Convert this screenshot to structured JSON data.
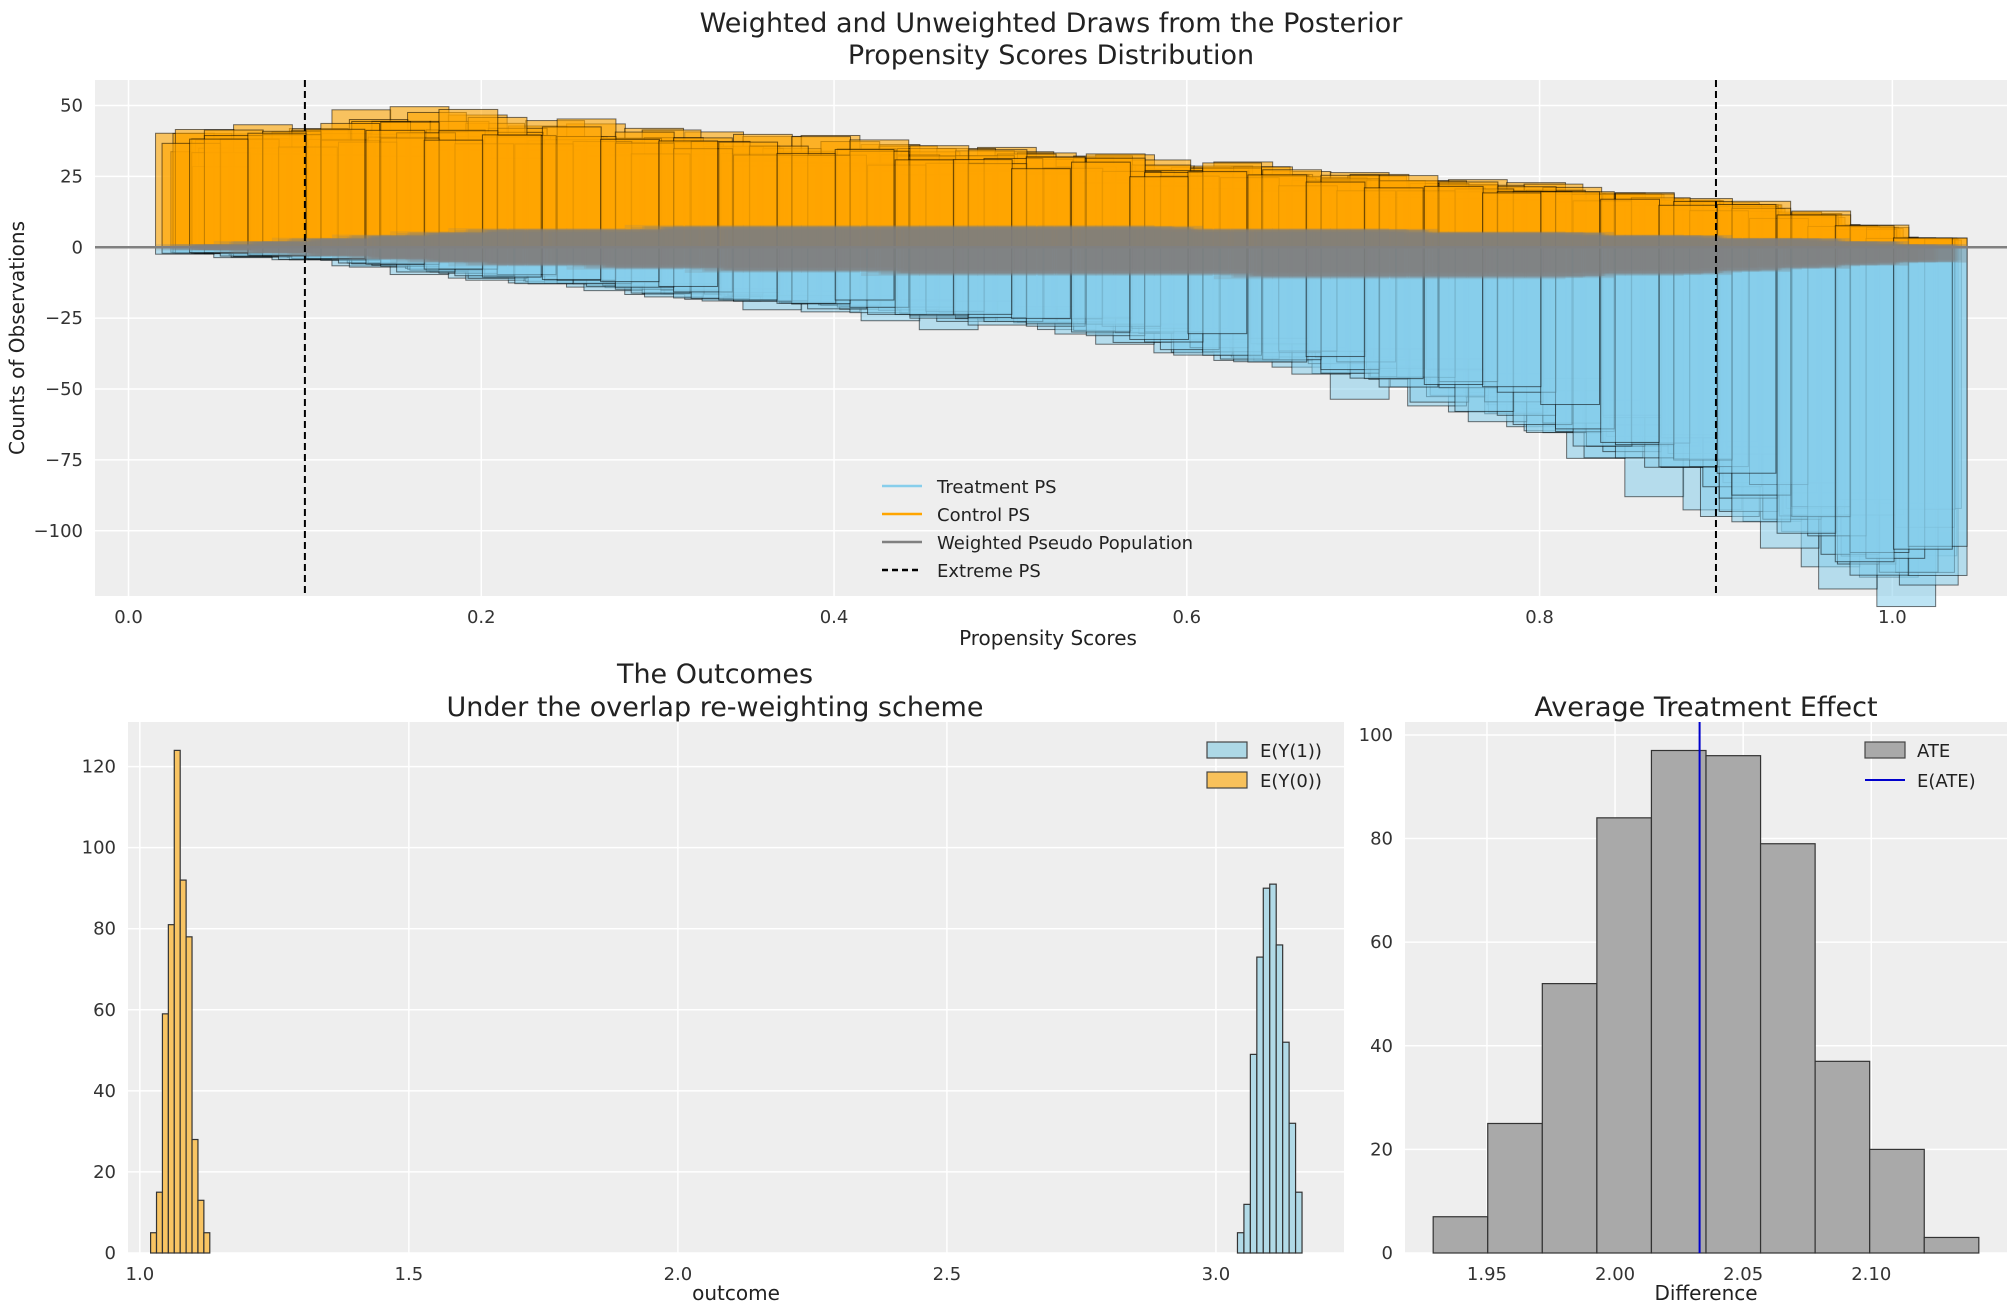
{
  "chart_data": [
    {
      "type": "bar",
      "title": [
        "Weighted and Unweighted Draws from the Posterior",
        "Propensity Scores Distribution"
      ],
      "xlabel": "Propensity Scores",
      "ylabel": "Counts of Observations",
      "xlim": [
        -0.019,
        1.065
      ],
      "ylim": [
        -123,
        59
      ],
      "grid": true,
      "legend_placement": "lower-center",
      "xticks": [
        "0.0",
        "0.2",
        "0.4",
        "0.6",
        "0.8",
        "1.0"
      ],
      "xtick_values": [
        0,
        0.2,
        0.4,
        0.6,
        0.8,
        1.0
      ],
      "yticks": [
        "50",
        "25",
        "0",
        "−25",
        "−50",
        "−75",
        "−100"
      ],
      "ytick_values": [
        50,
        25,
        0,
        -25,
        -50,
        -75,
        -100
      ],
      "bin_range": [
        0.03,
        1.03
      ],
      "bin_centers": [
        0.047,
        0.08,
        0.113,
        0.147,
        0.18,
        0.213,
        0.247,
        0.28,
        0.313,
        0.347,
        0.38,
        0.413,
        0.447,
        0.48,
        0.513,
        0.547,
        0.58,
        0.613,
        0.647,
        0.68,
        0.713,
        0.747,
        0.78,
        0.813,
        0.847,
        0.88,
        0.913,
        0.947,
        0.98,
        1.013
      ],
      "series": [
        {
          "name": "Control PS",
          "color": "#FFA500",
          "values": [
            36,
            37,
            38,
            40,
            41,
            40,
            38,
            36,
            35,
            34,
            33,
            32,
            31,
            30,
            30,
            29,
            27,
            26,
            25,
            23,
            22,
            21,
            20,
            19,
            18,
            16,
            14,
            11,
            7,
            3
          ]
        },
        {
          "name": "Treatment PS",
          "color": "#87CEEB",
          "values": [
            -2,
            -3,
            -4,
            -6,
            -8,
            -10,
            -12,
            -13,
            -15,
            -17,
            -18,
            -20,
            -22,
            -24,
            -25,
            -27,
            -30,
            -33,
            -36,
            -40,
            -44,
            -48,
            -53,
            -58,
            -64,
            -72,
            -82,
            -92,
            -102,
            -108
          ]
        },
        {
          "name": "Weighted Pseudo Population",
          "color": "#808080",
          "values_control": [
            1,
            2,
            3,
            4,
            5,
            6,
            6,
            6,
            7,
            7,
            7,
            7,
            7,
            7,
            7,
            7,
            7,
            6,
            6,
            6,
            6,
            5,
            5,
            5,
            4,
            4,
            3,
            3,
            2,
            1
          ],
          "values_treatment": [
            -1,
            -2,
            -3,
            -4,
            -5,
            -6,
            -6,
            -7,
            -7,
            -8,
            -8,
            -8,
            -9,
            -9,
            -9,
            -9,
            -9,
            -9,
            -10,
            -10,
            -10,
            -10,
            -10,
            -10,
            -9,
            -9,
            -8,
            -7,
            -6,
            -5
          ]
        }
      ],
      "reference_lines": [
        {
          "name": "Extreme PS",
          "x": [
            0.1,
            0.9
          ],
          "style": "dashed",
          "color": "#000000"
        }
      ],
      "legend": [
        "Treatment PS",
        "Control PS",
        "Weighted Pseudo Population",
        "Extreme PS"
      ]
    },
    {
      "type": "bar",
      "title": [
        "The Outcomes",
        "Under the overlap re-weighting scheme"
      ],
      "xlabel": "outcome",
      "ylabel": "",
      "xlim": [
        0.978,
        3.238
      ],
      "ylim": [
        0,
        131
      ],
      "grid": true,
      "legend_placement": "top-right",
      "xticks": [
        "1.0",
        "1.5",
        "2.0",
        "2.5",
        "3.0"
      ],
      "xtick_values": [
        1.0,
        1.5,
        2.0,
        2.5,
        3.0
      ],
      "yticks": [
        "0",
        "20",
        "40",
        "60",
        "80",
        "100",
        "120"
      ],
      "ytick_values": [
        0,
        20,
        40,
        60,
        80,
        100,
        120
      ],
      "series": [
        {
          "name": "E(Y(1))",
          "color": "#ADD8E6",
          "bin_start": 3.04,
          "bin_width": 0.012,
          "values": [
            5,
            12,
            49,
            73,
            90,
            91,
            76,
            52,
            32,
            15
          ]
        },
        {
          "name": "E(Y(0))",
          "color": "#F8C15B",
          "bin_start": 1.02,
          "bin_width": 0.011,
          "values": [
            5,
            15,
            59,
            81,
            124,
            92,
            78,
            28,
            13,
            5
          ]
        }
      ]
    },
    {
      "type": "bar",
      "title": [
        "Average Treatment Effect"
      ],
      "xlabel": "Difference",
      "ylabel": "",
      "xlim": [
        1.918,
        2.153
      ],
      "ylim": [
        0,
        102.5
      ],
      "grid": true,
      "legend_placement": "top-right",
      "xticks": [
        "1.95",
        "2.00",
        "2.05",
        "2.10"
      ],
      "xtick_values": [
        1.95,
        2.0,
        2.05,
        2.1
      ],
      "yticks": [
        "0",
        "20",
        "40",
        "60",
        "80",
        "100"
      ],
      "ytick_values": [
        0,
        20,
        40,
        60,
        80,
        100
      ],
      "series": [
        {
          "name": "ATE",
          "color": "#A9A9A9",
          "bin_start": 1.929,
          "bin_width": 0.0213,
          "values": [
            7,
            25,
            52,
            84,
            97,
            96,
            79,
            37,
            20,
            3
          ]
        }
      ],
      "reference_lines": [
        {
          "name": "E(ATE)",
          "x": [
            2.033
          ],
          "color": "#0000CD"
        }
      ]
    }
  ]
}
